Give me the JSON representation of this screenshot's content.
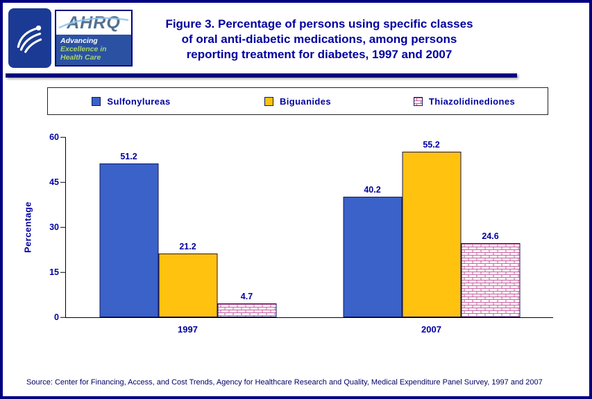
{
  "header": {
    "title_lines": [
      "Figure 3. Percentage of persons using specific classes",
      "of oral anti-diabetic medications, among persons",
      "reporting treatment for diabetes, 1997 and 2007"
    ],
    "logos": {
      "ahrq_acronym": "AHRQ",
      "ahrq_tagline_lines": [
        "Advancing",
        "Excellence in",
        "Health Care"
      ]
    }
  },
  "chart_data": {
    "type": "bar",
    "categories": [
      "1997",
      "2007"
    ],
    "series": [
      {
        "name": "Sulfonylureas",
        "values": [
          51.2,
          40.2
        ],
        "color": "#3A62C8",
        "border": "#14145A"
      },
      {
        "name": "Biguanides",
        "values": [
          21.2,
          55.2
        ],
        "color": "#FFC20E",
        "border": "#14145A"
      },
      {
        "name": "Thiazolidinediones",
        "values": [
          4.7,
          24.6
        ],
        "color": "#FFFFFF",
        "pattern": "brick",
        "pattern_color": "#C75F9F",
        "border": "#14145A"
      }
    ],
    "ylabel": "Percentage",
    "ylim": [
      0,
      60
    ],
    "yticks": [
      0,
      15,
      30,
      45,
      60
    ],
    "grid": false,
    "legend_position": "top"
  },
  "footer": {
    "source": "Source: Center for Financing, Access, and Cost Trends, Agency for Healthcare Research and Quality, Medical Expenditure Panel Survey, 1997 and 2007"
  },
  "colors": {
    "page_border": "#000080",
    "title_text": "#0000A0",
    "chart_text": "#0000A0",
    "divider": "#000080",
    "hhs_logo_background": "#1b3a94",
    "ahrq_tagline_background": "#2B51A3"
  }
}
